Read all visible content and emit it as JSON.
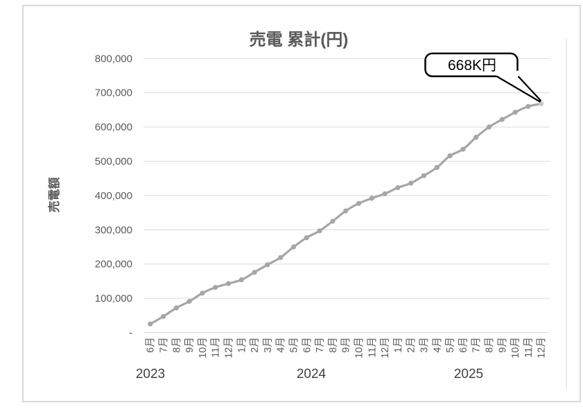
{
  "chart_data": {
    "type": "line",
    "title": "売電 累計(円)",
    "ylabel": "売電額",
    "categories": [
      "6月",
      "7月",
      "8月",
      "9月",
      "10月",
      "11月",
      "12月",
      "1月",
      "2月",
      "3月",
      "4月",
      "5月",
      "6月",
      "7月",
      "8月",
      "9月",
      "10月",
      "11月",
      "12月",
      "1月",
      "2月",
      "3月",
      "4月",
      "5月",
      "6月",
      "7月",
      "8月",
      "9月",
      "10月",
      "11月",
      "12月"
    ],
    "year_groups": [
      {
        "label": "2023",
        "start": 0,
        "count": 7
      },
      {
        "label": "2024",
        "start": 7,
        "count": 12
      },
      {
        "label": "2025",
        "start": 19,
        "count": 12
      }
    ],
    "year_label_x": [
      217,
      449,
      676
    ],
    "values": [
      25000,
      47000,
      72000,
      91000,
      115000,
      132000,
      143000,
      154000,
      176000,
      198000,
      219000,
      250000,
      277000,
      297000,
      325000,
      355000,
      377000,
      392000,
      405000,
      423000,
      436000,
      458000,
      482000,
      516000,
      535000,
      570000,
      600000,
      622000,
      643000,
      660000,
      668000
    ],
    "ylim": [
      0,
      800000
    ],
    "ytick_step": 100000,
    "ytick_labels": [
      "-",
      "100,000",
      "200,000",
      "300,000",
      "400,000",
      "500,000",
      "600,000",
      "700,000",
      "800,000"
    ],
    "grid": true,
    "smooth": true,
    "legend": "none",
    "marker": "circle",
    "annotation": {
      "text": "668K円",
      "target_index": 30
    }
  },
  "style": {
    "series_color": "#a6a6a6",
    "last_marker_color": "#c8c8c8",
    "gridline_color": "#d9d9d9",
    "frame_border_color": "#d9d9d9",
    "axis_text_color": "#595959",
    "year_text_color": "#404040",
    "title_color": "#595959",
    "annotation_border": "#000000",
    "annotation_fill": "#ffffff",
    "annotation_text_color": "#000000",
    "background": "#ffffff"
  }
}
